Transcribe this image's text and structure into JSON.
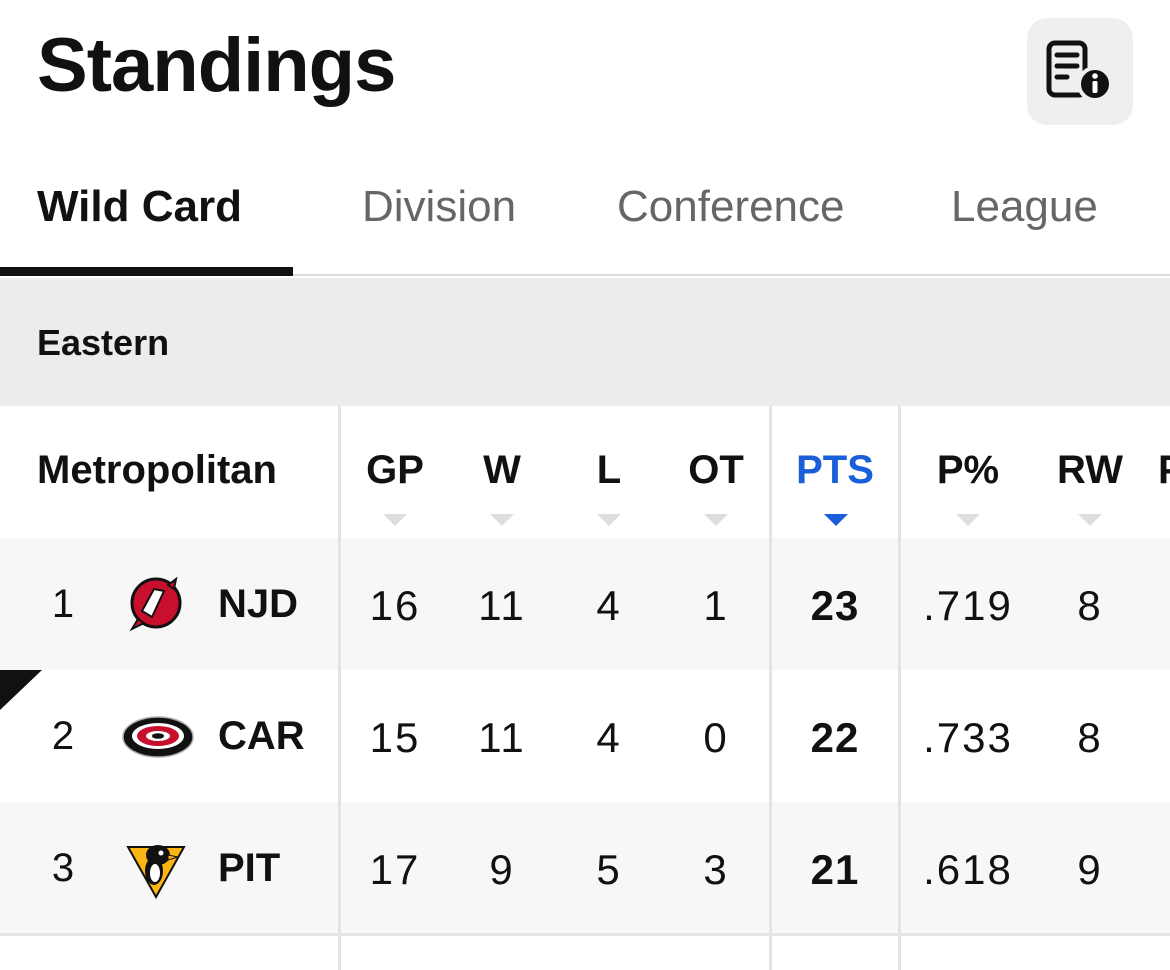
{
  "header": {
    "title": "Standings",
    "info_icon": "document-info-icon"
  },
  "tabs": [
    {
      "label": "Wild Card",
      "active": true
    },
    {
      "label": "Division",
      "active": false
    },
    {
      "label": "Conference",
      "active": false
    },
    {
      "label": "League",
      "active": false
    }
  ],
  "conference": "Eastern",
  "table": {
    "division": "Metropolitan",
    "columns": [
      "GP",
      "W",
      "L",
      "OT",
      "PTS",
      "P%",
      "RW"
    ],
    "partial_column": "P",
    "sorted_column": "PTS",
    "accent_color": "#1a5fd9",
    "rows": [
      {
        "rank": "1",
        "team": "NJD",
        "logo": "devils-logo-icon",
        "values": [
          "16",
          "11",
          "4",
          "1",
          "23",
          ".719",
          "8"
        ]
      },
      {
        "rank": "2",
        "team": "CAR",
        "logo": "hurricanes-logo-icon",
        "values": [
          "15",
          "11",
          "4",
          "0",
          "22",
          ".733",
          "8"
        ]
      },
      {
        "rank": "3",
        "team": "PIT",
        "logo": "penguins-logo-icon",
        "values": [
          "17",
          "9",
          "5",
          "3",
          "21",
          ".618",
          "9"
        ]
      }
    ]
  }
}
